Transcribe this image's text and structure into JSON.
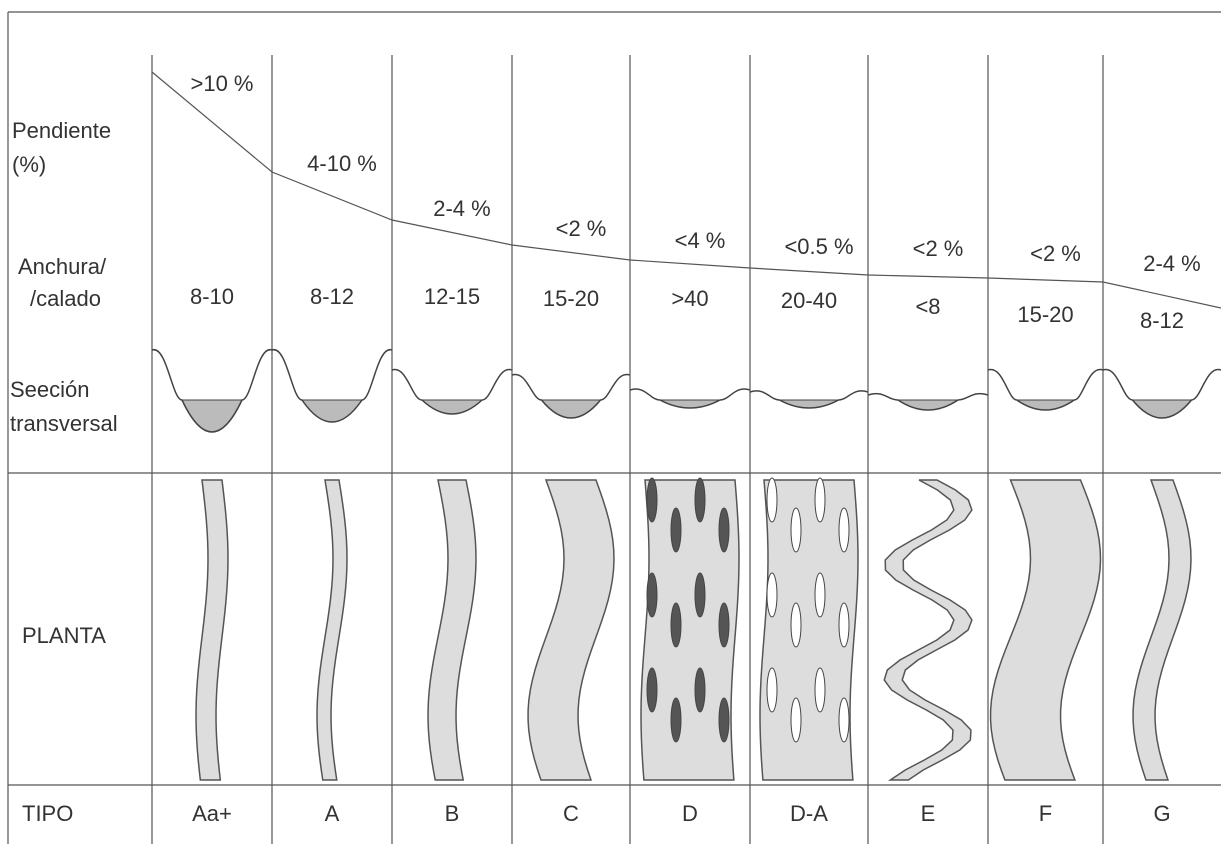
{
  "row_labels": {
    "slope": [
      "Pendiente",
      "(%)"
    ],
    "ratio": [
      "Anchura/",
      "/calado"
    ],
    "section": [
      "Seeción",
      "transversal"
    ],
    "plan": "PLANTA",
    "type": "TIPO"
  },
  "columns": [
    {
      "slope": ">10 %",
      "ratio": "8-10",
      "type": "Aa+"
    },
    {
      "slope": "4-10 %",
      "ratio": "8-12",
      "type": "A"
    },
    {
      "slope": "2-4 %",
      "ratio": "12-15",
      "type": "B"
    },
    {
      "slope": "<2 %",
      "ratio": "15-20",
      "type": "C"
    },
    {
      "slope": "<4 %",
      "ratio": ">40",
      "type": "D"
    },
    {
      "slope": "<0.5 %",
      "ratio": "20-40",
      "type": "D-A"
    },
    {
      "slope": "<2 %",
      "ratio": "<8",
      "type": "E"
    },
    {
      "slope": "<2 %",
      "ratio": "15-20",
      "type": "F"
    },
    {
      "slope": "2-4 %",
      "ratio": "8-12",
      "type": "G"
    }
  ]
}
